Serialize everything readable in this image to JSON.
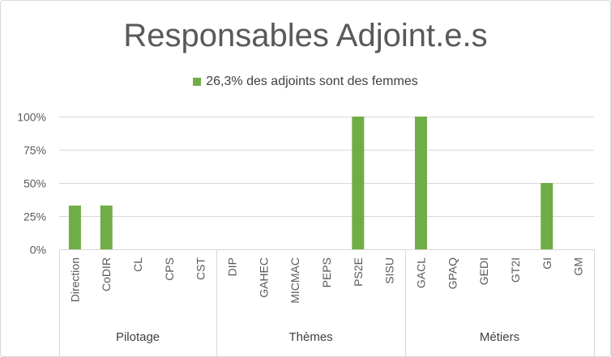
{
  "chart_data": {
    "type": "bar",
    "title": "Responsables Adjoint.e.s",
    "series": [
      {
        "name": "26,3% des adjoints sont des femmes",
        "color": "#70ad47",
        "values": [
          0.33,
          0.33,
          0,
          0,
          0,
          0,
          0,
          0,
          0,
          1.0,
          0,
          1.0,
          0,
          0,
          0,
          0.5,
          0
        ]
      }
    ],
    "categories": [
      "Direction",
      "CoDIR",
      "CL",
      "CPS",
      "CST",
      "DIP",
      "GAHEC",
      "MICMAC",
      "PEPS",
      "PS2E",
      "SISU",
      "GACL",
      "GPAQ",
      "GEDI",
      "GT2I",
      "GI",
      "GM"
    ],
    "groups": [
      {
        "label": "Pilotage",
        "count": 5
      },
      {
        "label": "Thèmes",
        "count": 6
      },
      {
        "label": "Métiers",
        "count": 6
      }
    ],
    "ylim": [
      0,
      1
    ],
    "yticks": [
      0,
      0.25,
      0.5,
      0.75,
      1
    ],
    "ytick_labels": [
      "0%",
      "25%",
      "50%",
      "75%",
      "100%"
    ],
    "grid": true,
    "legend_position": "top",
    "gridline_color": "#d9d9d9"
  }
}
